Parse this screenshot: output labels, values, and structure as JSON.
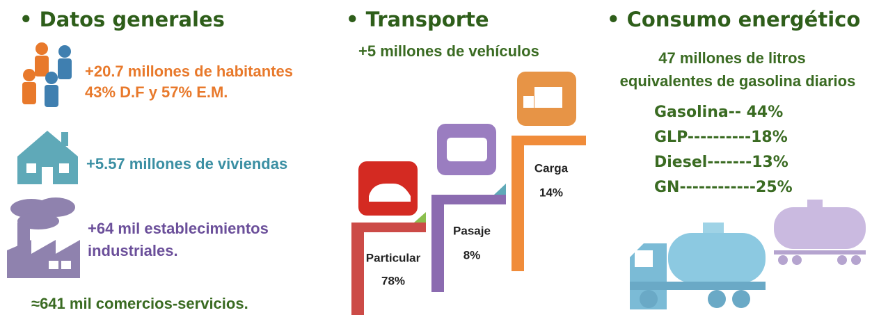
{
  "general": {
    "title": "• Datos generales",
    "population": "+20.7 millones de habitantes",
    "population_split": "43% D.F y 57% E.M.",
    "housing": "+5.57 millones de viviendas",
    "industry_line1": "+64 mil establecimientos",
    "industry_line2": "industriales.",
    "commerce": "≈641 mil comercios-servicios."
  },
  "transport": {
    "title": "• Transporte",
    "vehicles": "+5 millones de vehículos",
    "steps": [
      {
        "label": "Particular",
        "share": "78%"
      },
      {
        "label": "Pasaje",
        "share": "8%"
      },
      {
        "label": "Carga",
        "share": "14%"
      }
    ]
  },
  "energy": {
    "title": "• Consumo energético",
    "summary_line1": "47 millones de litros",
    "summary_line2": "equivalentes de gasolina diarios",
    "fuels": [
      "Gasolina-- 44%",
      "GLP----------18%",
      "Diesel-------13%",
      "GN------------25%"
    ]
  }
}
